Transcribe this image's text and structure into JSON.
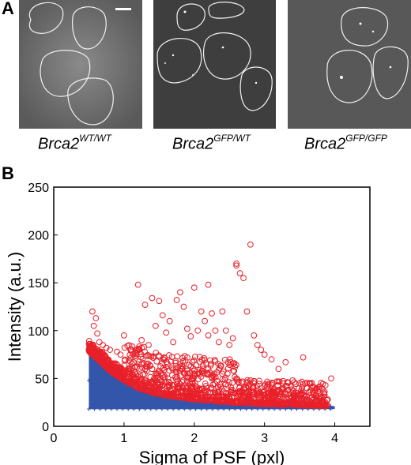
{
  "panel_a": {
    "letter": "A",
    "images": [
      {
        "label_main": "Brca2",
        "label_sup": "WT/WT"
      },
      {
        "label_main": "Brca2",
        "label_sup": "GFP/WT"
      },
      {
        "label_main": "Brca2",
        "label_sup": "GFP/GFP"
      }
    ]
  },
  "panel_b": {
    "letter": "B"
  },
  "chart_data": {
    "type": "scatter",
    "title": "",
    "xlabel": "Sigma of PSF (pxl)",
    "ylabel": "Intensity (a.u.)",
    "xlim": [
      0,
      4.5
    ],
    "ylim": [
      0,
      250
    ],
    "xticks": [
      "0",
      "1",
      "2",
      "3",
      "4"
    ],
    "yticks": [
      "0",
      "50",
      "100",
      "150",
      "200",
      "250"
    ],
    "grid": false,
    "series": [
      {
        "color": "#3355aa",
        "marker": "plus",
        "description_band_lower": 18,
        "band_x": [
          0.5,
          0.6,
          0.8,
          1.0,
          1.2,
          1.5,
          2.0,
          2.5,
          3.0,
          3.5,
          4.0
        ],
        "band_upper": [
          78,
          72,
          58,
          48,
          40,
          33,
          28,
          25,
          23,
          22,
          21
        ]
      },
      {
        "color": "#e8202a",
        "marker": "circle",
        "points": [
          [
            0.55,
            120
          ],
          [
            0.57,
            105
          ],
          [
            0.6,
            113
          ],
          [
            0.62,
            97
          ],
          [
            0.65,
            88
          ],
          [
            0.7,
            85
          ],
          [
            0.75,
            82
          ],
          [
            0.8,
            80
          ],
          [
            0.9,
            78
          ],
          [
            0.95,
            75
          ],
          [
            1.0,
            95
          ],
          [
            1.05,
            84
          ],
          [
            1.1,
            80
          ],
          [
            1.15,
            73
          ],
          [
            1.2,
            148
          ],
          [
            1.25,
            90
          ],
          [
            1.3,
            127
          ],
          [
            1.35,
            85
          ],
          [
            1.4,
            134
          ],
          [
            1.45,
            105
          ],
          [
            1.5,
            131
          ],
          [
            1.55,
            116
          ],
          [
            1.6,
            98
          ],
          [
            1.65,
            110
          ],
          [
            1.7,
            88
          ],
          [
            1.75,
            132
          ],
          [
            1.8,
            140
          ],
          [
            1.85,
            125
          ],
          [
            1.9,
            102
          ],
          [
            1.95,
            94
          ],
          [
            2.0,
            145
          ],
          [
            2.05,
            100
          ],
          [
            2.1,
            120
          ],
          [
            2.15,
            110
          ],
          [
            2.2,
            95
          ],
          [
            2.25,
            118
          ],
          [
            2.3,
            100
          ],
          [
            2.35,
            88
          ],
          [
            2.4,
            120
          ],
          [
            2.45,
            100
          ],
          [
            2.5,
            85
          ],
          [
            2.55,
            92
          ],
          [
            2.6,
            170
          ],
          [
            2.65,
            160
          ],
          [
            2.7,
            155
          ],
          [
            2.75,
            120
          ],
          [
            2.8,
            190
          ],
          [
            2.85,
            95
          ],
          [
            2.9,
            85
          ],
          [
            2.95,
            80
          ],
          [
            3.0,
            75
          ],
          [
            3.1,
            70
          ],
          [
            3.2,
            60
          ],
          [
            3.3,
            67
          ],
          [
            3.4,
            48
          ],
          [
            3.5,
            45
          ],
          [
            3.55,
            72
          ],
          [
            3.6,
            40
          ],
          [
            3.7,
            33
          ],
          [
            3.8,
            30
          ],
          [
            3.9,
            28
          ],
          [
            3.95,
            50
          ],
          [
            2.2,
            148
          ],
          [
            2.6,
            168
          ],
          [
            1.0,
            55
          ],
          [
            1.2,
            52
          ],
          [
            1.4,
            60
          ],
          [
            1.6,
            62
          ],
          [
            1.8,
            65
          ],
          [
            2.0,
            58
          ],
          [
            2.2,
            60
          ],
          [
            2.4,
            55
          ],
          [
            2.6,
            50
          ],
          [
            2.8,
            48
          ],
          [
            3.0,
            42
          ],
          [
            3.2,
            38
          ],
          [
            3.4,
            35
          ],
          [
            3.6,
            32
          ]
        ]
      }
    ]
  }
}
